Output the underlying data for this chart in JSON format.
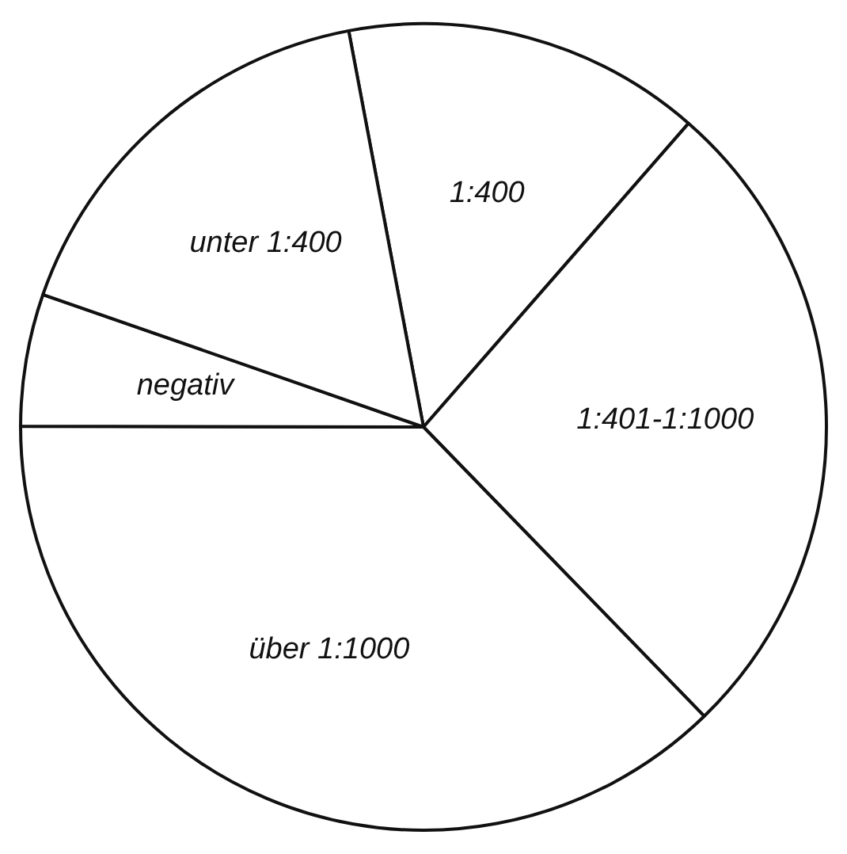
{
  "chart_data": {
    "type": "pie",
    "categories": [
      "1:400",
      "1:401-1:1000",
      "über 1:1000",
      "negativ",
      "unter 1:400"
    ],
    "values": [
      14.4,
      26.3,
      37.3,
      5.3,
      16.7
    ],
    "colors": [
      "#ffffff",
      "#ffffff",
      "#ffffff",
      "#ffffff",
      "#ffffff"
    ],
    "legend": false
  }
}
